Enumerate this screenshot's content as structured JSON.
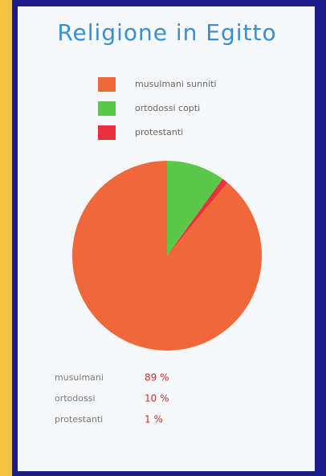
{
  "chart_data": {
    "type": "pie",
    "title": "Religione in Egitto",
    "categories": [
      "musulmani sunniti",
      "ortodossi copti",
      "protestanti"
    ],
    "values": [
      89,
      10,
      1
    ],
    "colors": [
      "#f0683a",
      "#5cc84a",
      "#e8303e"
    ],
    "summary_names": [
      "musulmani",
      "ortodossi",
      "protestanti"
    ],
    "value_labels": [
      "89 %",
      "10 %",
      "1 %"
    ]
  }
}
